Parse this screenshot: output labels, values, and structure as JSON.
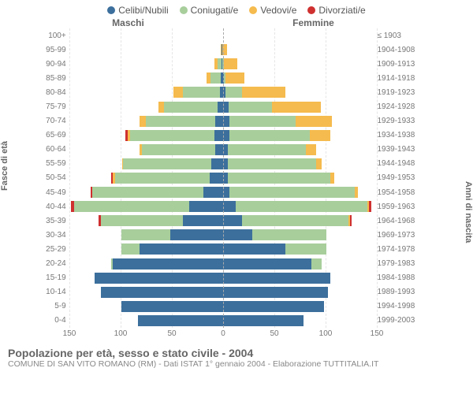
{
  "legend": {
    "items": [
      {
        "label": "Celibi/Nubili",
        "color": "#3c6f9c"
      },
      {
        "label": "Coniugati/e",
        "color": "#a8ce9c"
      },
      {
        "label": "Vedovi/e",
        "color": "#f5bb4e"
      },
      {
        "label": "Divorziati/e",
        "color": "#cf3030"
      }
    ]
  },
  "headers": {
    "male": "Maschi",
    "female": "Femmine"
  },
  "y_left_title": "Fasce di età",
  "y_right_title": "Anni di nascita",
  "x_max": 150,
  "x_ticks": [
    150,
    100,
    50,
    0,
    50,
    100,
    150
  ],
  "colors": {
    "single": "#3c6f9c",
    "married": "#a8ce9c",
    "widowed": "#f5bb4e",
    "divorced": "#cf3030",
    "grid": "#e5e5e5",
    "centerline": "#aaaaaa",
    "text": "#666666",
    "background": "#ffffff"
  },
  "rows": [
    {
      "age": "100+",
      "birth": "≤ 1903",
      "m": {
        "s": 0,
        "c": 0,
        "w": 0,
        "d": 0
      },
      "f": {
        "s": 0,
        "c": 0,
        "w": 0,
        "d": 0
      }
    },
    {
      "age": "95-99",
      "birth": "1904-1908",
      "m": {
        "s": 0,
        "c": 0,
        "w": 1,
        "d": 0
      },
      "f": {
        "s": 1,
        "c": 0,
        "w": 4,
        "d": 0
      }
    },
    {
      "age": "90-94",
      "birth": "1909-1913",
      "m": {
        "s": 0,
        "c": 4,
        "w": 3,
        "d": 0
      },
      "f": {
        "s": 1,
        "c": 1,
        "w": 13,
        "d": 0
      }
    },
    {
      "age": "85-89",
      "birth": "1914-1918",
      "m": {
        "s": 1,
        "c": 10,
        "w": 4,
        "d": 0
      },
      "f": {
        "s": 2,
        "c": 2,
        "w": 18,
        "d": 0
      }
    },
    {
      "age": "80-84",
      "birth": "1919-1923",
      "m": {
        "s": 2,
        "c": 36,
        "w": 9,
        "d": 0
      },
      "f": {
        "s": 4,
        "c": 16,
        "w": 42,
        "d": 0
      }
    },
    {
      "age": "75-79",
      "birth": "1924-1928",
      "m": {
        "s": 4,
        "c": 52,
        "w": 6,
        "d": 0
      },
      "f": {
        "s": 7,
        "c": 42,
        "w": 48,
        "d": 0
      }
    },
    {
      "age": "70-74",
      "birth": "1929-1933",
      "m": {
        "s": 6,
        "c": 68,
        "w": 6,
        "d": 0
      },
      "f": {
        "s": 8,
        "c": 64,
        "w": 36,
        "d": 0
      }
    },
    {
      "age": "65-69",
      "birth": "1934-1938",
      "m": {
        "s": 7,
        "c": 82,
        "w": 3,
        "d": 2
      },
      "f": {
        "s": 8,
        "c": 78,
        "w": 20,
        "d": 0
      }
    },
    {
      "age": "60-64",
      "birth": "1939-1943",
      "m": {
        "s": 6,
        "c": 72,
        "w": 2,
        "d": 0
      },
      "f": {
        "s": 6,
        "c": 76,
        "w": 10,
        "d": 0
      }
    },
    {
      "age": "55-59",
      "birth": "1944-1948",
      "m": {
        "s": 10,
        "c": 86,
        "w": 1,
        "d": 0
      },
      "f": {
        "s": 6,
        "c": 86,
        "w": 6,
        "d": 0
      }
    },
    {
      "age": "50-54",
      "birth": "1949-1953",
      "m": {
        "s": 12,
        "c": 92,
        "w": 2,
        "d": 2
      },
      "f": {
        "s": 6,
        "c": 100,
        "w": 4,
        "d": 0
      }
    },
    {
      "age": "45-49",
      "birth": "1954-1958",
      "m": {
        "s": 18,
        "c": 108,
        "w": 0,
        "d": 2
      },
      "f": {
        "s": 8,
        "c": 122,
        "w": 3,
        "d": 0
      }
    },
    {
      "age": "40-44",
      "birth": "1959-1963",
      "m": {
        "s": 32,
        "c": 112,
        "w": 0,
        "d": 3
      },
      "f": {
        "s": 14,
        "c": 128,
        "w": 2,
        "d": 2
      }
    },
    {
      "age": "35-39",
      "birth": "1964-1968",
      "m": {
        "s": 38,
        "c": 80,
        "w": 0,
        "d": 2
      },
      "f": {
        "s": 20,
        "c": 104,
        "w": 1,
        "d": 2
      }
    },
    {
      "age": "30-34",
      "birth": "1969-1973",
      "m": {
        "s": 50,
        "c": 48,
        "w": 0,
        "d": 0
      },
      "f": {
        "s": 30,
        "c": 72,
        "w": 0,
        "d": 0
      }
    },
    {
      "age": "25-29",
      "birth": "1974-1978",
      "m": {
        "s": 80,
        "c": 18,
        "w": 0,
        "d": 0
      },
      "f": {
        "s": 62,
        "c": 40,
        "w": 0,
        "d": 0
      }
    },
    {
      "age": "20-24",
      "birth": "1979-1983",
      "m": {
        "s": 106,
        "c": 2,
        "w": 0,
        "d": 0
      },
      "f": {
        "s": 88,
        "c": 10,
        "w": 0,
        "d": 0
      }
    },
    {
      "age": "15-19",
      "birth": "1984-1988",
      "m": {
        "s": 124,
        "c": 0,
        "w": 0,
        "d": 0
      },
      "f": {
        "s": 106,
        "c": 0,
        "w": 0,
        "d": 0
      }
    },
    {
      "age": "10-14",
      "birth": "1989-1993",
      "m": {
        "s": 118,
        "c": 0,
        "w": 0,
        "d": 0
      },
      "f": {
        "s": 104,
        "c": 0,
        "w": 0,
        "d": 0
      }
    },
    {
      "age": "5-9",
      "birth": "1994-1998",
      "m": {
        "s": 98,
        "c": 0,
        "w": 0,
        "d": 0
      },
      "f": {
        "s": 100,
        "c": 0,
        "w": 0,
        "d": 0
      }
    },
    {
      "age": "0-4",
      "birth": "1999-2003",
      "m": {
        "s": 82,
        "c": 0,
        "w": 0,
        "d": 0
      },
      "f": {
        "s": 80,
        "c": 0,
        "w": 0,
        "d": 0
      }
    }
  ],
  "footer": {
    "title": "Popolazione per età, sesso e stato civile - 2004",
    "subtitle": "COMUNE DI SAN VITO ROMANO (RM) - Dati ISTAT 1° gennaio 2004 - Elaborazione TUTTITALIA.IT"
  }
}
